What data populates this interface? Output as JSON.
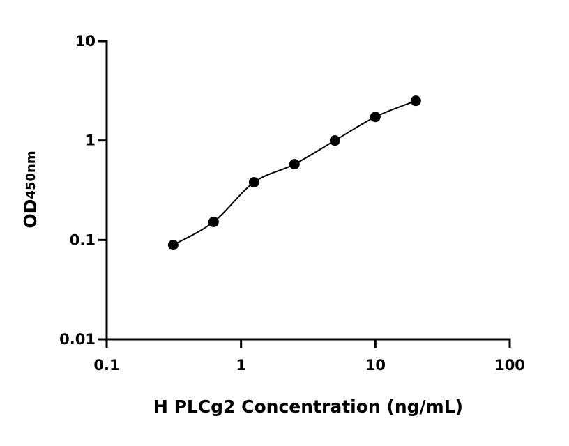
{
  "chart_data": {
    "type": "scatter",
    "xlabel": "H PLCg2 Concentration (ng/mL)",
    "ylabel": "OD",
    "ylabel_subscript": "450nm",
    "x_log": true,
    "y_log": true,
    "xlim": [
      0.1,
      100
    ],
    "ylim": [
      0.01,
      10
    ],
    "xticks": [
      0.1,
      1,
      10,
      100
    ],
    "yticks": [
      0.01,
      0.1,
      1,
      10
    ],
    "fit_curve": true,
    "series": [
      {
        "color": "#000000",
        "x": [
          0.3125,
          0.625,
          1.25,
          2.5,
          5,
          10,
          20
        ],
        "values": [
          0.089,
          0.152,
          0.38,
          0.578,
          1.0,
          1.73,
          2.51
        ]
      }
    ]
  }
}
